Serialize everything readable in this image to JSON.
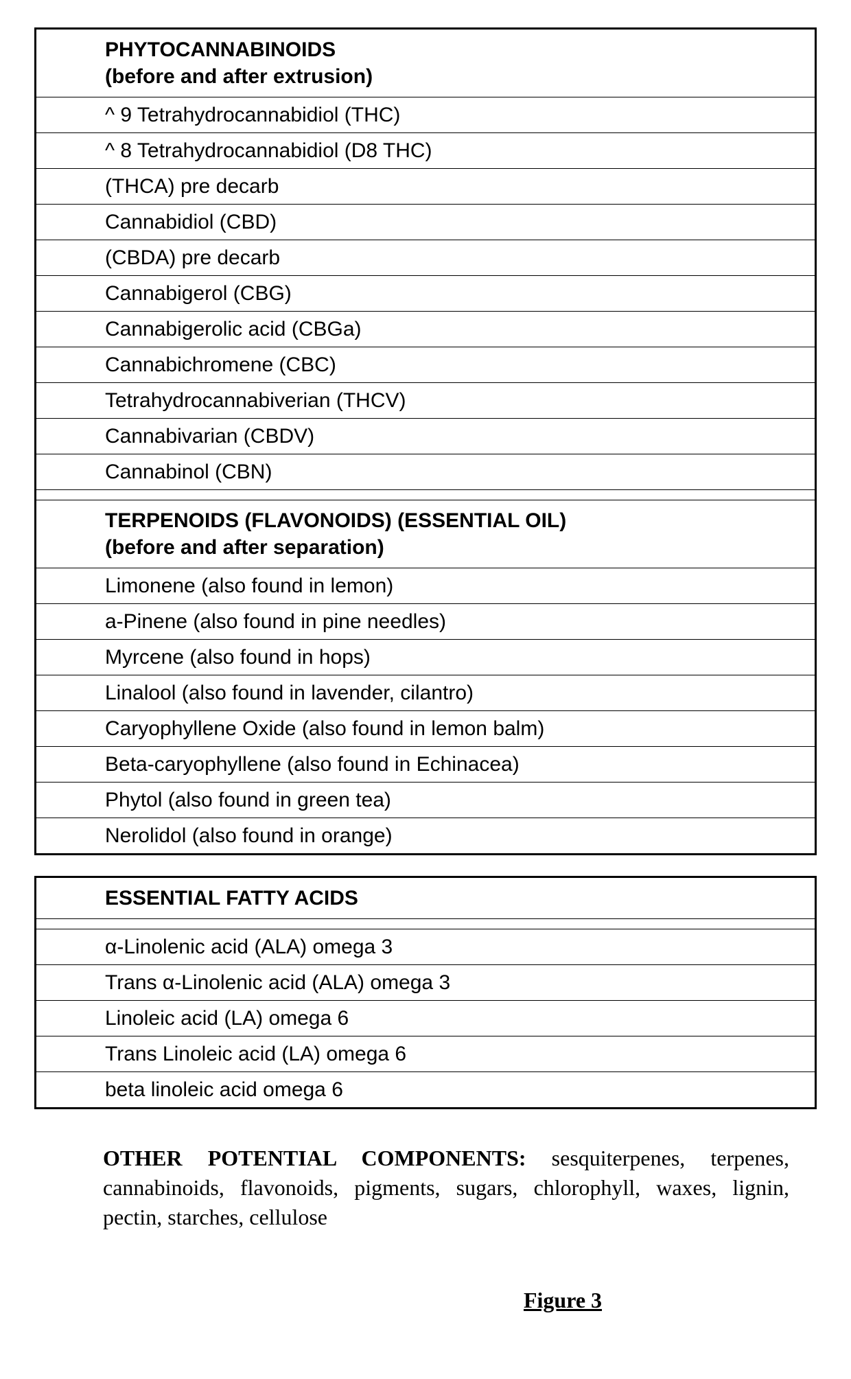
{
  "tables": [
    {
      "sections": [
        {
          "header": "PHYTOCANNABINOIDS\n(before and after extrusion)",
          "rows": [
            "^ 9 Tetrahydrocannabidiol (THC)",
            "^ 8 Tetrahydrocannabidiol (D8 THC)",
            "(THCA) pre decarb",
            "Cannabidiol (CBD)",
            "(CBDA) pre decarb",
            "Cannabigerol (CBG)",
            "Cannabigerolic acid (CBGa)",
            "Cannabichromene (CBC)",
            "Tetrahydrocannabiverian (THCV)",
            "Cannabivarian (CBDV)",
            "Cannabinol (CBN)"
          ]
        },
        {
          "header": "TERPENOIDS (FLAVONOIDS) (ESSENTIAL OIL)\n(before and after separation)",
          "rows": [
            "Limonene (also found in lemon)",
            "a-Pinene (also found in pine needles)",
            "Myrcene (also found in hops)",
            "Linalool (also found in lavender, cilantro)",
            "Caryophyllene Oxide (also found in lemon balm)",
            "Beta-caryophyllene (also found in Echinacea)",
            "Phytol (also found in green tea)",
            "Nerolidol (also found in orange)"
          ]
        }
      ]
    },
    {
      "sections": [
        {
          "header": "ESSENTIAL FATTY ACIDS",
          "spacer_after_header": true,
          "rows": [
            "α-Linolenic acid (ALA) omega 3",
            "Trans α-Linolenic acid (ALA) omega 3",
            "Linoleic acid (LA) omega 6",
            "Trans Linoleic acid (LA) omega 6",
            "beta linoleic acid omega 6"
          ]
        }
      ]
    }
  ],
  "other": {
    "lead": "OTHER POTENTIAL COMPONENTS:",
    "body": " sesquiterpenes, terpenes, cannabinoids, flavonoids, pigments, sugars, chlorophyll, waxes, lignin, pectin, starches, cellulose"
  },
  "figure_label": "Figure 3"
}
